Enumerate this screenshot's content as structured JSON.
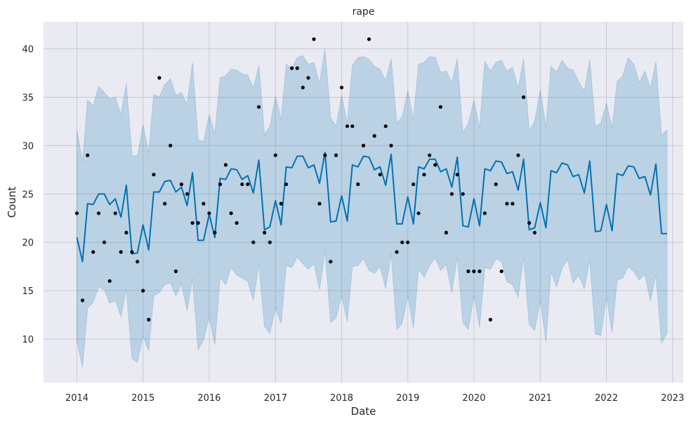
{
  "colors": {
    "background": "#eaeaf2",
    "grid": "#c9c9d2",
    "forecast_line": "#0072b2",
    "interval_fill": "#0072b2",
    "observed_points": "#000000"
  },
  "chart_data": {
    "type": "line",
    "title": "rape",
    "xlabel": "Date",
    "ylabel": "Count",
    "x_axis_type": "date",
    "xlim": [
      "2013-07-01",
      "2023-03-01"
    ],
    "ylim": [
      5.5,
      42.8
    ],
    "x_ticks": [
      "2014-01-01",
      "2015-01-01",
      "2016-01-01",
      "2017-01-01",
      "2018-01-01",
      "2019-01-01",
      "2020-01-01",
      "2021-01-01",
      "2022-01-01",
      "2023-01-01"
    ],
    "x_tick_labels": [
      "2014",
      "2015",
      "2016",
      "2017",
      "2018",
      "2019",
      "2020",
      "2021",
      "2022",
      "2023"
    ],
    "y_ticks": [
      10,
      15,
      20,
      25,
      30,
      35,
      40
    ],
    "grid": true,
    "legend": "none",
    "observed": {
      "dates": [
        "2014-01",
        "2014-02",
        "2014-03",
        "2014-04",
        "2014-05",
        "2014-06",
        "2014-07",
        "2014-08",
        "2014-09",
        "2014-10",
        "2014-11",
        "2014-12",
        "2015-01",
        "2015-02",
        "2015-03",
        "2015-04",
        "2015-05",
        "2015-06",
        "2015-07",
        "2015-08",
        "2015-09",
        "2015-10",
        "2015-11",
        "2015-12",
        "2016-01",
        "2016-02",
        "2016-03",
        "2016-04",
        "2016-05",
        "2016-06",
        "2016-07",
        "2016-08",
        "2016-09",
        "2016-10",
        "2016-11",
        "2016-12",
        "2017-01",
        "2017-02",
        "2017-03",
        "2017-04",
        "2017-05",
        "2017-06",
        "2017-07",
        "2017-08",
        "2017-09",
        "2017-10",
        "2017-11",
        "2017-12",
        "2018-01",
        "2018-02",
        "2018-03",
        "2018-04",
        "2018-05",
        "2018-06",
        "2018-07",
        "2018-08",
        "2018-09",
        "2018-10",
        "2018-11",
        "2018-12",
        "2019-01",
        "2019-02",
        "2019-03",
        "2019-04",
        "2019-05",
        "2019-06",
        "2019-07",
        "2019-08",
        "2019-09",
        "2019-10",
        "2019-11",
        "2019-12",
        "2020-01",
        "2020-02",
        "2020-03",
        "2020-04",
        "2020-05",
        "2020-06",
        "2020-07",
        "2020-08",
        "2020-09",
        "2020-10",
        "2020-11",
        "2020-12"
      ],
      "values": [
        23,
        14,
        29,
        19,
        23,
        20,
        16,
        23,
        19,
        21,
        19,
        18,
        15,
        12,
        27,
        37,
        24,
        30,
        17,
        26,
        25,
        22,
        22,
        24,
        23,
        21,
        26,
        28,
        23,
        22,
        26,
        26,
        20,
        34,
        21,
        20,
        29,
        24,
        26,
        38,
        38,
        36,
        37,
        41,
        24,
        29,
        18,
        29,
        36,
        32,
        32,
        26,
        30,
        41,
        31,
        27,
        32,
        30,
        19,
        20,
        20,
        26,
        23,
        27,
        29,
        28,
        34,
        21,
        25,
        27,
        25,
        17,
        17,
        17,
        23,
        12,
        26,
        17,
        24,
        24,
        29,
        35,
        22,
        21
      ]
    },
    "forecast": {
      "dates": [
        "2014-01",
        "2014-02",
        "2014-03",
        "2014-04",
        "2014-05",
        "2014-06",
        "2014-07",
        "2014-08",
        "2014-09",
        "2014-10",
        "2014-11",
        "2014-12",
        "2015-01",
        "2015-02",
        "2015-03",
        "2015-04",
        "2015-05",
        "2015-06",
        "2015-07",
        "2015-08",
        "2015-09",
        "2015-10",
        "2015-11",
        "2015-12",
        "2016-01",
        "2016-02",
        "2016-03",
        "2016-04",
        "2016-05",
        "2016-06",
        "2016-07",
        "2016-08",
        "2016-09",
        "2016-10",
        "2016-11",
        "2016-12",
        "2017-01",
        "2017-02",
        "2017-03",
        "2017-04",
        "2017-05",
        "2017-06",
        "2017-07",
        "2017-08",
        "2017-09",
        "2017-10",
        "2017-11",
        "2017-12",
        "2018-01",
        "2018-02",
        "2018-03",
        "2018-04",
        "2018-05",
        "2018-06",
        "2018-07",
        "2018-08",
        "2018-09",
        "2018-10",
        "2018-11",
        "2018-12",
        "2019-01",
        "2019-02",
        "2019-03",
        "2019-04",
        "2019-05",
        "2019-06",
        "2019-07",
        "2019-08",
        "2019-09",
        "2019-10",
        "2019-11",
        "2019-12",
        "2020-01",
        "2020-02",
        "2020-03",
        "2020-04",
        "2020-05",
        "2020-06",
        "2020-07",
        "2020-08",
        "2020-09",
        "2020-10",
        "2020-11",
        "2020-12",
        "2021-01",
        "2021-02",
        "2021-03",
        "2021-04",
        "2021-05",
        "2021-06",
        "2021-07",
        "2021-08",
        "2021-09",
        "2021-10",
        "2021-11",
        "2021-12",
        "2022-01",
        "2022-02",
        "2022-03",
        "2022-04",
        "2022-05",
        "2022-06",
        "2022-07",
        "2022-08",
        "2022-09",
        "2022-10",
        "2022-11",
        "2022-12"
      ],
      "yhat": [
        20.5,
        18.0,
        24.0,
        23.9,
        25.0,
        25.0,
        23.9,
        24.5,
        22.6,
        25.9,
        18.8,
        18.9,
        21.8,
        19.2,
        25.2,
        25.2,
        26.3,
        26.4,
        25.2,
        25.7,
        23.8,
        27.2,
        20.2,
        20.2,
        22.9,
        20.5,
        26.6,
        26.5,
        27.6,
        27.5,
        26.5,
        26.9,
        25.1,
        28.5,
        21.3,
        21.6,
        24.3,
        21.8,
        27.8,
        27.7,
        28.9,
        28.9,
        27.7,
        28.0,
        26.1,
        29.3,
        22.1,
        22.2,
        24.8,
        22.2,
        28.0,
        27.8,
        28.9,
        28.8,
        27.5,
        27.8,
        25.9,
        29.1,
        21.9,
        21.9,
        24.7,
        21.9,
        27.8,
        27.6,
        28.6,
        28.6,
        27.3,
        27.6,
        25.7,
        28.8,
        21.7,
        21.6,
        24.5,
        21.7,
        27.6,
        27.4,
        28.4,
        28.3,
        27.1,
        27.3,
        25.4,
        28.6,
        21.3,
        21.5,
        24.1,
        21.5,
        27.4,
        27.2,
        28.2,
        28.0,
        26.8,
        27.0,
        25.1,
        28.4,
        21.1,
        21.2,
        23.9,
        21.2,
        27.1,
        26.9,
        27.9,
        27.8,
        26.6,
        26.8,
        24.9,
        28.1,
        20.9,
        20.9
      ],
      "yhat_lower": [
        9.8,
        7.1,
        13.2,
        13.8,
        15.4,
        15.1,
        13.7,
        14.0,
        12.3,
        15.2,
        8.0,
        7.6,
        10.3,
        8.8,
        14.5,
        14.8,
        15.6,
        15.8,
        14.5,
        15.7,
        12.9,
        16.3,
        8.9,
        9.9,
        12.3,
        9.4,
        16.4,
        15.6,
        17.4,
        16.6,
        16.3,
        16.0,
        14.0,
        17.7,
        11.3,
        10.6,
        13.2,
        11.6,
        17.6,
        17.4,
        18.5,
        17.8,
        17.2,
        17.8,
        15.1,
        19.2,
        11.7,
        12.2,
        14.5,
        11.8,
        17.5,
        17.6,
        18.3,
        17.1,
        16.8,
        17.5,
        15.2,
        18.8,
        11.0,
        11.6,
        14.5,
        11.1,
        17.2,
        16.4,
        17.6,
        18.4,
        17.1,
        17.7,
        14.8,
        18.5,
        11.7,
        11.0,
        14.5,
        11.2,
        17.4,
        17.2,
        18.3,
        18.0,
        15.9,
        15.6,
        14.3,
        18.5,
        11.5,
        10.9,
        14.0,
        9.7,
        17.0,
        15.4,
        17.3,
        18.2,
        15.8,
        16.6,
        15.2,
        18.2,
        10.5,
        10.4,
        14.4,
        10.7,
        16.1,
        16.3,
        17.5,
        17.0,
        16.1,
        16.7,
        13.9,
        16.7,
        9.6,
        10.6
      ],
      "yhat_upper": [
        31.6,
        28.3,
        34.7,
        34.1,
        36.1,
        35.5,
        34.8,
        35.0,
        33.2,
        36.4,
        29.0,
        28.9,
        32.2,
        29.2,
        35.3,
        35.0,
        36.3,
        36.9,
        35.2,
        35.5,
        34.2,
        38.6,
        30.6,
        30.4,
        33.2,
        31.2,
        37.0,
        37.2,
        37.9,
        37.8,
        37.4,
        37.3,
        35.9,
        38.3,
        31.1,
        32.0,
        35.1,
        32.7,
        38.4,
        38.0,
        39.1,
        39.3,
        38.4,
        38.6,
        36.4,
        40.0,
        32.9,
        32.0,
        35.2,
        32.3,
        38.3,
        39.1,
        39.2,
        38.9,
        38.2,
        37.9,
        36.7,
        39.0,
        32.3,
        33.0,
        35.7,
        32.7,
        38.4,
        38.6,
        39.2,
        39.1,
        37.6,
        37.7,
        36.5,
        39.0,
        31.3,
        32.3,
        34.7,
        31.8,
        38.7,
        37.7,
        38.6,
        38.8,
        37.7,
        38.1,
        35.9,
        39.0,
        31.5,
        32.5,
        35.8,
        31.9,
        38.2,
        37.6,
        38.8,
        38.0,
        37.8,
        36.6,
        35.6,
        38.9,
        32.0,
        32.3,
        34.4,
        31.8,
        36.6,
        37.2,
        39.1,
        38.4,
        36.5,
        37.7,
        35.9,
        38.7,
        31.1,
        31.6
      ]
    }
  }
}
